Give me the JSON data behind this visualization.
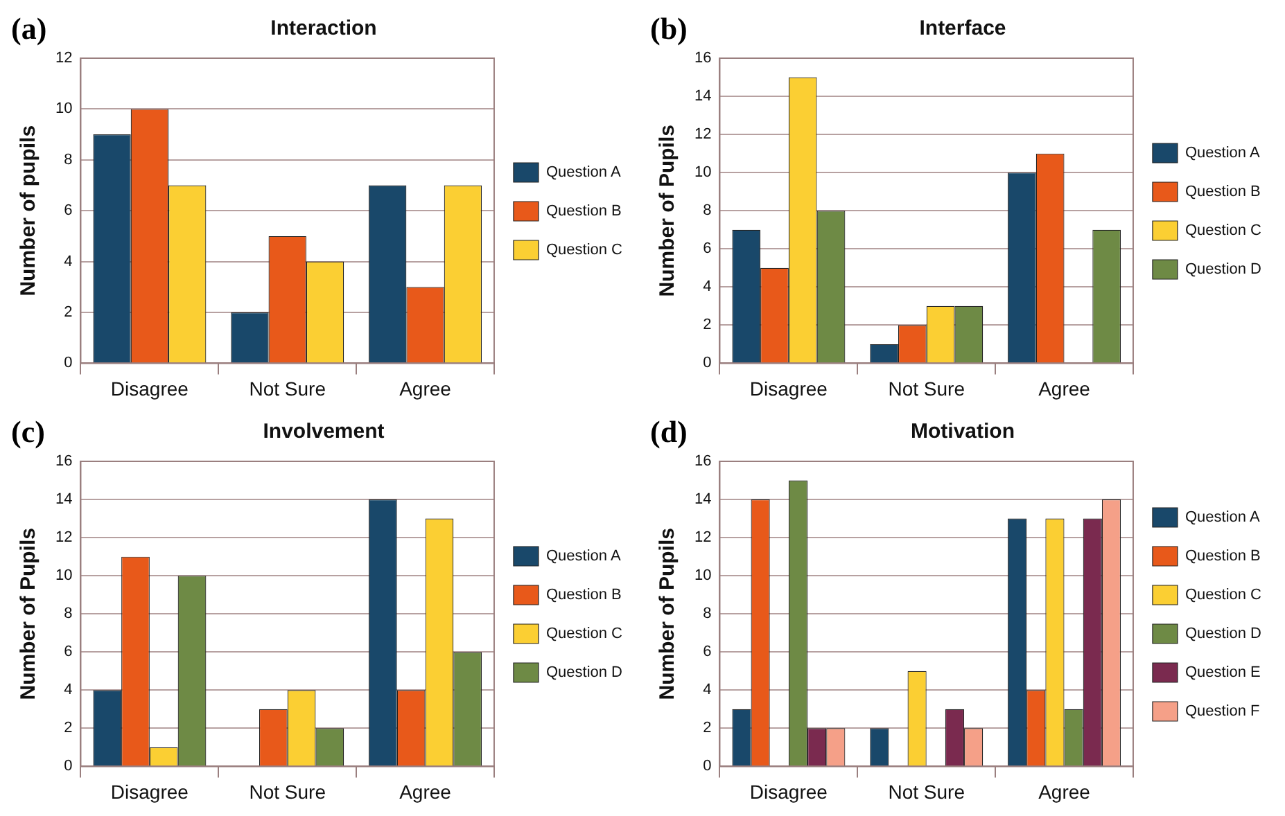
{
  "chart_data": [
    {
      "type": "bar",
      "title": "Interaction",
      "annotations": [
        "(a)"
      ],
      "ylabel": "Number of pupils",
      "categories": [
        "Disagree",
        "Not Sure",
        "Agree"
      ],
      "ylim": [
        0,
        12
      ],
      "yticks": [
        0,
        2,
        4,
        6,
        8,
        10,
        12
      ],
      "grid": "y",
      "legend": "right",
      "series": [
        {
          "name": "Question A",
          "color": "#19486a",
          "values": [
            9,
            2,
            7
          ]
        },
        {
          "name": "Question B",
          "color": "#e8591a",
          "values": [
            10,
            5,
            3
          ]
        },
        {
          "name": "Question C",
          "color": "#fbcf33",
          "values": [
            7,
            4,
            7
          ]
        }
      ]
    },
    {
      "type": "bar",
      "title": "Interface",
      "annotations": [
        "(b)"
      ],
      "ylabel": "Number of Pupils",
      "categories": [
        "Disagree",
        "Not Sure",
        "Agree"
      ],
      "ylim": [
        0,
        16
      ],
      "yticks": [
        0,
        2,
        4,
        6,
        8,
        10,
        12,
        14,
        16
      ],
      "grid": "y",
      "legend": "right",
      "series": [
        {
          "name": "Question A",
          "color": "#19486a",
          "values": [
            7,
            1,
            10
          ]
        },
        {
          "name": "Question B",
          "color": "#e8591a",
          "values": [
            5,
            2,
            11
          ]
        },
        {
          "name": "Question C",
          "color": "#fbcf33",
          "values": [
            15,
            3,
            0
          ]
        },
        {
          "name": "Question D",
          "color": "#6e8a45",
          "values": [
            8,
            3,
            7
          ]
        }
      ]
    },
    {
      "type": "bar",
      "title": "Involvement",
      "annotations": [
        "(c)"
      ],
      "ylabel": "Number of Pupils",
      "categories": [
        "Disagree",
        "Not Sure",
        "Agree"
      ],
      "ylim": [
        0,
        16
      ],
      "yticks": [
        0,
        2,
        4,
        6,
        8,
        10,
        12,
        14,
        16
      ],
      "grid": "y",
      "legend": "right",
      "series": [
        {
          "name": "Question A",
          "color": "#19486a",
          "values": [
            4,
            0,
            14
          ]
        },
        {
          "name": "Question B",
          "color": "#e8591a",
          "values": [
            11,
            3,
            4
          ]
        },
        {
          "name": "Question C",
          "color": "#fbcf33",
          "values": [
            1,
            4,
            13
          ]
        },
        {
          "name": "Question D",
          "color": "#6e8a45",
          "values": [
            10,
            2,
            6
          ]
        }
      ]
    },
    {
      "type": "bar",
      "title": "Motivation",
      "annotations": [
        "(d)"
      ],
      "ylabel": "Number of Pupils",
      "categories": [
        "Disagree",
        "Not Sure",
        "Agree"
      ],
      "ylim": [
        0,
        16
      ],
      "yticks": [
        0,
        2,
        4,
        6,
        8,
        10,
        12,
        14,
        16
      ],
      "grid": "y",
      "legend": "right",
      "series": [
        {
          "name": "Question A",
          "color": "#19486a",
          "values": [
            3,
            2,
            13
          ]
        },
        {
          "name": "Question B",
          "color": "#e8591a",
          "values": [
            14,
            0,
            4
          ]
        },
        {
          "name": "Question C",
          "color": "#fbcf33",
          "values": [
            0,
            5,
            13
          ]
        },
        {
          "name": "Question D",
          "color": "#6e8a45",
          "values": [
            15,
            0,
            3
          ]
        },
        {
          "name": "Question E",
          "color": "#7a2a4f",
          "values": [
            2,
            3,
            13
          ]
        },
        {
          "name": "Question F",
          "color": "#f5a088",
          "values": [
            2,
            2,
            14
          ]
        }
      ]
    }
  ]
}
